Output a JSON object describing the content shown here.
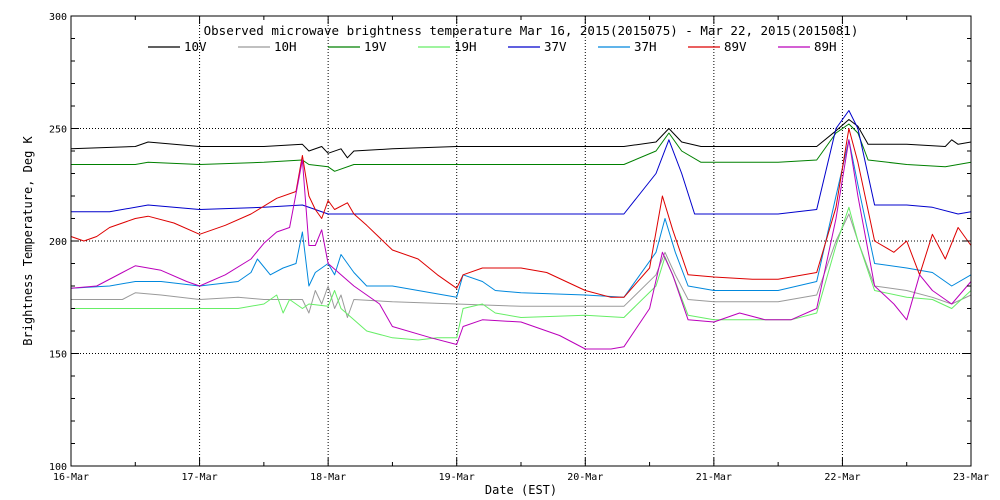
{
  "chart_data": {
    "type": "line",
    "title": "Observed microwave brightness temperature Mar 16, 2015(2015075) - Mar 22, 2015(2015081)",
    "xlabel": "Date (EST)",
    "ylabel": "Brightness Temperature, Deg K",
    "xlim": [
      0,
      7
    ],
    "ylim": [
      100,
      300
    ],
    "x_ticks": [
      {
        "x": 0,
        "label": "16-Mar"
      },
      {
        "x": 1,
        "label": "17-Mar"
      },
      {
        "x": 2,
        "label": "18-Mar"
      },
      {
        "x": 3,
        "label": "19-Mar"
      },
      {
        "x": 4,
        "label": "20-Mar"
      },
      {
        "x": 5,
        "label": "21-Mar"
      },
      {
        "x": 6,
        "label": "22-Mar"
      },
      {
        "x": 7,
        "label": "23-Mar"
      }
    ],
    "y_ticks": [
      100,
      150,
      200,
      250,
      300
    ],
    "grid": true,
    "legend_position": "top",
    "series": [
      {
        "name": "10V",
        "color": "#000000",
        "points": [
          [
            0,
            241
          ],
          [
            0.5,
            242
          ],
          [
            0.6,
            244
          ],
          [
            1.0,
            242
          ],
          [
            1.5,
            242
          ],
          [
            1.8,
            243
          ],
          [
            1.85,
            240
          ],
          [
            1.95,
            242
          ],
          [
            2.0,
            239
          ],
          [
            2.1,
            241
          ],
          [
            2.15,
            237
          ],
          [
            2.2,
            240
          ],
          [
            2.5,
            241
          ],
          [
            3.0,
            242
          ],
          [
            3.5,
            242
          ],
          [
            4.0,
            242
          ],
          [
            4.3,
            242
          ],
          [
            4.55,
            244
          ],
          [
            4.65,
            250
          ],
          [
            4.75,
            244
          ],
          [
            4.9,
            242
          ],
          [
            5.5,
            242
          ],
          [
            5.8,
            242
          ],
          [
            5.95,
            249
          ],
          [
            6.05,
            254
          ],
          [
            6.12,
            251
          ],
          [
            6.2,
            243
          ],
          [
            6.5,
            243
          ],
          [
            6.8,
            242
          ],
          [
            6.85,
            245
          ],
          [
            6.9,
            243
          ],
          [
            7.0,
            244
          ]
        ]
      },
      {
        "name": "10H",
        "color": "#9a9a9a",
        "points": [
          [
            0,
            174
          ],
          [
            0.3,
            174
          ],
          [
            0.4,
            174
          ],
          [
            0.5,
            177
          ],
          [
            0.7,
            176
          ],
          [
            1.0,
            174
          ],
          [
            1.3,
            175
          ],
          [
            1.5,
            174
          ],
          [
            1.8,
            174
          ],
          [
            1.85,
            168
          ],
          [
            1.9,
            178
          ],
          [
            1.95,
            172
          ],
          [
            2.0,
            180
          ],
          [
            2.05,
            170
          ],
          [
            2.1,
            176
          ],
          [
            2.15,
            166
          ],
          [
            2.2,
            174
          ],
          [
            2.5,
            173
          ],
          [
            3.0,
            172
          ],
          [
            3.5,
            171
          ],
          [
            4.0,
            171
          ],
          [
            4.3,
            171
          ],
          [
            4.55,
            185
          ],
          [
            4.62,
            195
          ],
          [
            4.7,
            185
          ],
          [
            4.8,
            174
          ],
          [
            5.0,
            173
          ],
          [
            5.5,
            173
          ],
          [
            5.8,
            176
          ],
          [
            5.95,
            200
          ],
          [
            6.05,
            212
          ],
          [
            6.12,
            200
          ],
          [
            6.25,
            180
          ],
          [
            6.5,
            178
          ],
          [
            6.7,
            175
          ],
          [
            6.85,
            172
          ],
          [
            7.0,
            176
          ]
        ]
      },
      {
        "name": "19V",
        "color": "#008000",
        "points": [
          [
            0,
            234
          ],
          [
            0.5,
            234
          ],
          [
            0.6,
            235
          ],
          [
            1.0,
            234
          ],
          [
            1.5,
            235
          ],
          [
            1.8,
            236
          ],
          [
            1.85,
            234
          ],
          [
            2.0,
            233
          ],
          [
            2.05,
            231
          ],
          [
            2.2,
            234
          ],
          [
            2.5,
            234
          ],
          [
            3.0,
            234
          ],
          [
            3.5,
            234
          ],
          [
            4.0,
            234
          ],
          [
            4.3,
            234
          ],
          [
            4.55,
            240
          ],
          [
            4.65,
            248
          ],
          [
            4.75,
            240
          ],
          [
            4.9,
            235
          ],
          [
            5.5,
            235
          ],
          [
            5.8,
            236
          ],
          [
            5.95,
            248
          ],
          [
            6.05,
            252
          ],
          [
            6.12,
            248
          ],
          [
            6.2,
            236
          ],
          [
            6.5,
            234
          ],
          [
            6.8,
            233
          ],
          [
            7.0,
            235
          ]
        ]
      },
      {
        "name": "19H",
        "color": "#66ee66",
        "points": [
          [
            0,
            170
          ],
          [
            0.3,
            170
          ],
          [
            0.5,
            170
          ],
          [
            1.0,
            170
          ],
          [
            1.3,
            170
          ],
          [
            1.5,
            172
          ],
          [
            1.6,
            176
          ],
          [
            1.65,
            168
          ],
          [
            1.7,
            174
          ],
          [
            1.8,
            170
          ],
          [
            1.85,
            172
          ],
          [
            2.0,
            171
          ],
          [
            2.05,
            178
          ],
          [
            2.1,
            170
          ],
          [
            2.2,
            165
          ],
          [
            2.3,
            160
          ],
          [
            2.5,
            157
          ],
          [
            2.7,
            156
          ],
          [
            2.85,
            157
          ],
          [
            3.0,
            157
          ],
          [
            3.05,
            170
          ],
          [
            3.2,
            172
          ],
          [
            3.3,
            168
          ],
          [
            3.5,
            166
          ],
          [
            4.0,
            167
          ],
          [
            4.3,
            166
          ],
          [
            4.55,
            180
          ],
          [
            4.62,
            193
          ],
          [
            4.7,
            182
          ],
          [
            4.8,
            167
          ],
          [
            5.0,
            165
          ],
          [
            5.3,
            165
          ],
          [
            5.6,
            165
          ],
          [
            5.8,
            168
          ],
          [
            5.95,
            198
          ],
          [
            6.05,
            215
          ],
          [
            6.12,
            200
          ],
          [
            6.25,
            178
          ],
          [
            6.5,
            175
          ],
          [
            6.7,
            174
          ],
          [
            6.85,
            170
          ],
          [
            7.0,
            178
          ]
        ]
      },
      {
        "name": "37V",
        "color": "#0000cc",
        "points": [
          [
            0,
            213
          ],
          [
            0.3,
            213
          ],
          [
            0.6,
            216
          ],
          [
            1.0,
            214
          ],
          [
            1.5,
            215
          ],
          [
            1.8,
            216
          ],
          [
            1.9,
            214
          ],
          [
            2.0,
            212
          ],
          [
            2.5,
            212
          ],
          [
            3.0,
            212
          ],
          [
            3.5,
            212
          ],
          [
            4.0,
            212
          ],
          [
            4.3,
            212
          ],
          [
            4.55,
            230
          ],
          [
            4.65,
            245
          ],
          [
            4.75,
            230
          ],
          [
            4.85,
            212
          ],
          [
            5.0,
            212
          ],
          [
            5.5,
            212
          ],
          [
            5.8,
            214
          ],
          [
            5.95,
            250
          ],
          [
            6.05,
            258
          ],
          [
            6.12,
            250
          ],
          [
            6.25,
            216
          ],
          [
            6.5,
            216
          ],
          [
            6.7,
            215
          ],
          [
            6.9,
            212
          ],
          [
            7.0,
            213
          ]
        ]
      },
      {
        "name": "37H",
        "color": "#0088dd",
        "points": [
          [
            0,
            179
          ],
          [
            0.3,
            180
          ],
          [
            0.5,
            182
          ],
          [
            0.7,
            182
          ],
          [
            1.0,
            180
          ],
          [
            1.3,
            182
          ],
          [
            1.4,
            186
          ],
          [
            1.45,
            192
          ],
          [
            1.55,
            185
          ],
          [
            1.65,
            188
          ],
          [
            1.75,
            190
          ],
          [
            1.8,
            204
          ],
          [
            1.85,
            180
          ],
          [
            1.9,
            186
          ],
          [
            2.0,
            190
          ],
          [
            2.05,
            185
          ],
          [
            2.1,
            194
          ],
          [
            2.2,
            186
          ],
          [
            2.3,
            180
          ],
          [
            2.5,
            180
          ],
          [
            2.7,
            178
          ],
          [
            3.0,
            175
          ],
          [
            3.05,
            185
          ],
          [
            3.2,
            182
          ],
          [
            3.3,
            178
          ],
          [
            3.5,
            177
          ],
          [
            4.0,
            176
          ],
          [
            4.3,
            175
          ],
          [
            4.55,
            195
          ],
          [
            4.62,
            210
          ],
          [
            4.7,
            195
          ],
          [
            4.8,
            180
          ],
          [
            5.0,
            178
          ],
          [
            5.5,
            178
          ],
          [
            5.8,
            182
          ],
          [
            5.95,
            220
          ],
          [
            6.05,
            245
          ],
          [
            6.12,
            225
          ],
          [
            6.25,
            190
          ],
          [
            6.5,
            188
          ],
          [
            6.7,
            186
          ],
          [
            6.85,
            180
          ],
          [
            7.0,
            185
          ]
        ]
      },
      {
        "name": "89V",
        "color": "#dd0000",
        "points": [
          [
            0,
            202
          ],
          [
            0.1,
            200
          ],
          [
            0.2,
            202
          ],
          [
            0.3,
            206
          ],
          [
            0.5,
            210
          ],
          [
            0.6,
            211
          ],
          [
            0.8,
            208
          ],
          [
            1.0,
            203
          ],
          [
            1.2,
            207
          ],
          [
            1.4,
            212
          ],
          [
            1.6,
            219
          ],
          [
            1.75,
            222
          ],
          [
            1.8,
            238
          ],
          [
            1.85,
            220
          ],
          [
            1.9,
            214
          ],
          [
            1.95,
            210
          ],
          [
            2.0,
            218
          ],
          [
            2.05,
            214
          ],
          [
            2.15,
            217
          ],
          [
            2.2,
            212
          ],
          [
            2.3,
            207
          ],
          [
            2.5,
            196
          ],
          [
            2.7,
            192
          ],
          [
            2.85,
            185
          ],
          [
            3.0,
            179
          ],
          [
            3.05,
            185
          ],
          [
            3.2,
            188
          ],
          [
            3.5,
            188
          ],
          [
            3.7,
            186
          ],
          [
            4.0,
            178
          ],
          [
            4.2,
            175
          ],
          [
            4.3,
            175
          ],
          [
            4.5,
            188
          ],
          [
            4.6,
            220
          ],
          [
            4.68,
            205
          ],
          [
            4.8,
            185
          ],
          [
            5.0,
            184
          ],
          [
            5.3,
            183
          ],
          [
            5.5,
            183
          ],
          [
            5.8,
            186
          ],
          [
            5.95,
            215
          ],
          [
            6.05,
            250
          ],
          [
            6.12,
            235
          ],
          [
            6.25,
            200
          ],
          [
            6.4,
            195
          ],
          [
            6.5,
            200
          ],
          [
            6.6,
            185
          ],
          [
            6.7,
            203
          ],
          [
            6.8,
            192
          ],
          [
            6.9,
            206
          ],
          [
            7.0,
            198
          ]
        ]
      },
      {
        "name": "89H",
        "color": "#bb00bb",
        "points": [
          [
            0,
            179
          ],
          [
            0.2,
            180
          ],
          [
            0.4,
            186
          ],
          [
            0.5,
            189
          ],
          [
            0.7,
            187
          ],
          [
            0.9,
            182
          ],
          [
            1.0,
            180
          ],
          [
            1.2,
            185
          ],
          [
            1.4,
            192
          ],
          [
            1.5,
            199
          ],
          [
            1.6,
            204
          ],
          [
            1.7,
            206
          ],
          [
            1.8,
            236
          ],
          [
            1.85,
            198
          ],
          [
            1.9,
            198
          ],
          [
            1.95,
            205
          ],
          [
            2.0,
            190
          ],
          [
            2.1,
            185
          ],
          [
            2.2,
            180
          ],
          [
            2.4,
            172
          ],
          [
            2.5,
            162
          ],
          [
            2.8,
            157
          ],
          [
            3.0,
            154
          ],
          [
            3.05,
            162
          ],
          [
            3.2,
            165
          ],
          [
            3.5,
            164
          ],
          [
            3.8,
            158
          ],
          [
            4.0,
            152
          ],
          [
            4.2,
            152
          ],
          [
            4.3,
            153
          ],
          [
            4.5,
            170
          ],
          [
            4.6,
            195
          ],
          [
            4.68,
            185
          ],
          [
            4.8,
            165
          ],
          [
            5.0,
            164
          ],
          [
            5.2,
            168
          ],
          [
            5.4,
            165
          ],
          [
            5.6,
            165
          ],
          [
            5.8,
            170
          ],
          [
            5.95,
            210
          ],
          [
            6.05,
            245
          ],
          [
            6.12,
            220
          ],
          [
            6.25,
            180
          ],
          [
            6.4,
            172
          ],
          [
            6.5,
            165
          ],
          [
            6.6,
            185
          ],
          [
            6.7,
            178
          ],
          [
            6.85,
            172
          ],
          [
            7.0,
            182
          ]
        ]
      }
    ]
  }
}
